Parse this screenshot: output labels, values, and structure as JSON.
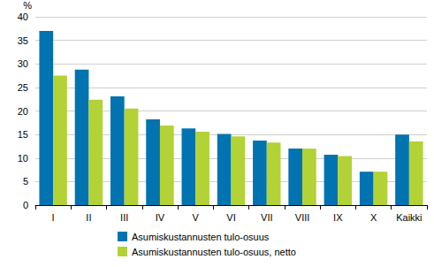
{
  "chart_data": {
    "type": "bar",
    "y_label": "%",
    "categories": [
      "I",
      "II",
      "III",
      "IV",
      "V",
      "VI",
      "VII",
      "VIII",
      "IX",
      "X",
      "Kaikki"
    ],
    "series": [
      {
        "name": "Asumiskustannusten tulo-osuus",
        "color": "#0073b0",
        "values": [
          37.0,
          28.8,
          23.1,
          18.2,
          16.3,
          15.1,
          13.7,
          12.0,
          10.7,
          7.1,
          15.0
        ]
      },
      {
        "name": "Asumiskustannusten tulo-osuus, netto",
        "color": "#b2d235",
        "values": [
          27.5,
          22.4,
          20.5,
          16.9,
          15.6,
          14.6,
          13.3,
          12.0,
          10.4,
          7.1,
          13.5
        ]
      }
    ],
    "ylim": [
      0,
      40
    ],
    "yticks": [
      0,
      5,
      10,
      15,
      20,
      25,
      30,
      35,
      40
    ],
    "grid": true,
    "legend": "bottom"
  }
}
